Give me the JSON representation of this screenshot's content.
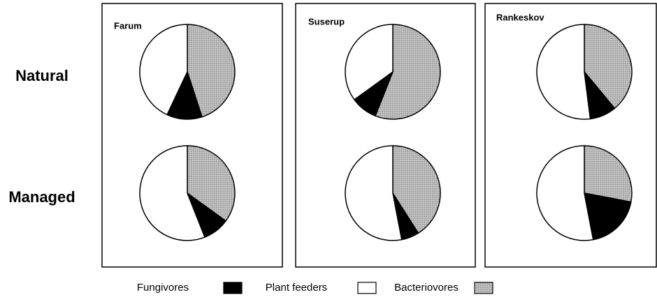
{
  "chart_data": {
    "type": "pie",
    "rows": [
      "Natural",
      "Managed"
    ],
    "columns": [
      "Farum",
      "Suserup",
      "Rankeskov"
    ],
    "series": [
      {
        "name": "Fungivores",
        "color": "#000000",
        "values": [
          12,
          9,
          9,
          9,
          6,
          19
        ]
      },
      {
        "name": "Plant feeders",
        "color": "#ffffff",
        "values": [
          43,
          35,
          52,
          56,
          53,
          53
        ]
      },
      {
        "name": "Bacteriovores",
        "color": "#c4c4c4",
        "values": [
          45,
          56,
          39,
          35,
          41,
          28
        ]
      }
    ]
  }
}
